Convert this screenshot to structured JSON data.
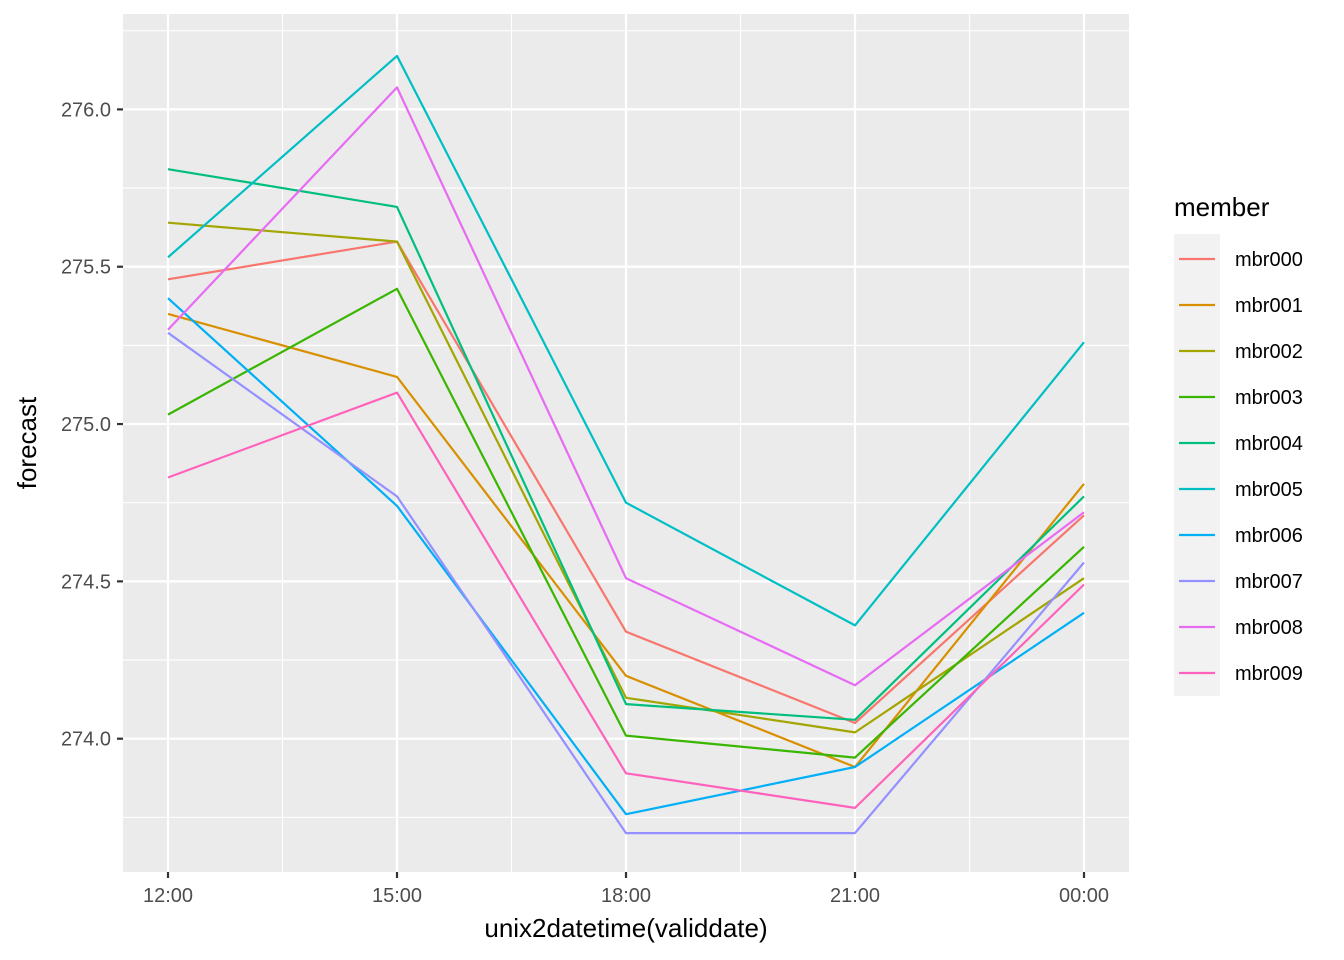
{
  "chart_data": {
    "type": "line",
    "title": "",
    "xlabel": "unix2datetime(validdate)",
    "ylabel": "forecast",
    "categories": [
      "12:00",
      "15:00",
      "18:00",
      "21:00",
      "00:00"
    ],
    "y_ticks": [
      "274.0",
      "274.5",
      "275.0",
      "275.5",
      "276.0"
    ],
    "y_tick_values": [
      274.0,
      274.5,
      275.0,
      275.5,
      276.0
    ],
    "ylim": [
      273.63,
      276.3
    ],
    "grid": true,
    "legend_title": "member",
    "legend_placement": "right",
    "series": [
      {
        "name": "mbr000",
        "color": "#F8766D",
        "values": [
          275.46,
          275.58,
          274.34,
          274.05,
          274.71
        ]
      },
      {
        "name": "mbr001",
        "color": "#D89000",
        "values": [
          275.35,
          275.15,
          274.2,
          273.91,
          274.81
        ]
      },
      {
        "name": "mbr002",
        "color": "#A3A500",
        "values": [
          275.64,
          275.58,
          274.13,
          274.02,
          274.51
        ]
      },
      {
        "name": "mbr003",
        "color": "#39B600",
        "values": [
          275.03,
          275.43,
          274.01,
          273.94,
          274.61
        ]
      },
      {
        "name": "mbr004",
        "color": "#00BF7D",
        "values": [
          275.81,
          275.69,
          274.11,
          274.06,
          274.77
        ]
      },
      {
        "name": "mbr005",
        "color": "#00BFC4",
        "values": [
          275.53,
          276.17,
          274.75,
          274.36,
          275.26
        ]
      },
      {
        "name": "mbr006",
        "color": "#00B0F6",
        "values": [
          275.4,
          274.74,
          273.76,
          273.91,
          274.4
        ]
      },
      {
        "name": "mbr007",
        "color": "#9590FF",
        "values": [
          275.29,
          274.77,
          273.7,
          273.7,
          274.56
        ]
      },
      {
        "name": "mbr008",
        "color": "#E76BF3",
        "values": [
          275.3,
          276.07,
          274.51,
          274.17,
          274.72
        ]
      },
      {
        "name": "mbr009",
        "color": "#FF62BC",
        "values": [
          274.83,
          275.1,
          273.89,
          273.78,
          274.49
        ]
      }
    ]
  }
}
